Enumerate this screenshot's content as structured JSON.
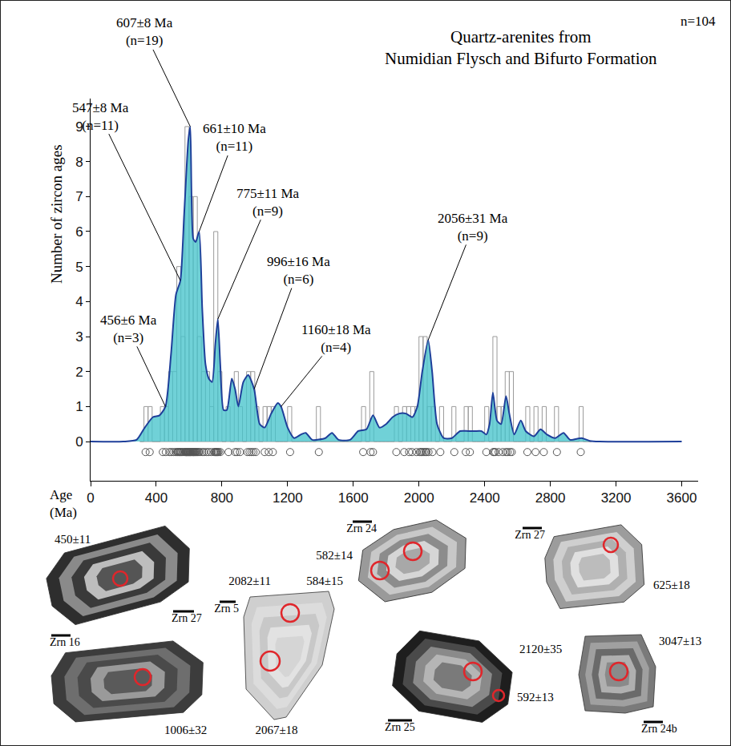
{
  "chart_data": {
    "type": "histogram",
    "title": [
      "Quartz-arenites from",
      "Numidian Flysch and Bifurto Formation"
    ],
    "note": "n=104",
    "ylabel": "Number of zircon ages",
    "xlabel": [
      "Age",
      "(Ma)"
    ],
    "xlim": [
      0,
      3700
    ],
    "xticks": [
      0,
      400,
      800,
      1200,
      1600,
      2000,
      2400,
      2800,
      3200,
      3600
    ],
    "ylim": [
      -1.12,
      9.8
    ],
    "yticks": [
      0,
      1,
      2,
      3,
      4,
      5,
      6,
      7,
      8,
      9
    ],
    "grid": false,
    "series": [
      {
        "type": "line",
        "color": "#1e3f9a",
        "x": [
          0,
          200,
          280,
          330,
          380,
          420,
          456,
          490,
          520,
          547,
          570,
          595,
          607,
          625,
          640,
          661,
          680,
          700,
          720,
          740,
          760,
          775,
          790,
          810,
          830,
          860,
          880,
          900,
          930,
          960,
          996,
          1030,
          1060,
          1100,
          1140,
          1160,
          1200,
          1240,
          1280,
          1310,
          1350,
          1430,
          1470,
          1510,
          1580,
          1630,
          1680,
          1720,
          1760,
          1800,
          1840,
          1880,
          1920,
          1960,
          1990,
          2020,
          2056,
          2080,
          2110,
          2150,
          2200,
          2250,
          2300,
          2340,
          2380,
          2410,
          2430,
          2450,
          2475,
          2500,
          2530,
          2550,
          2580,
          2620,
          2650,
          2700,
          2740,
          2780,
          2830,
          2880,
          2920,
          2990,
          3040,
          3100,
          3600
        ],
        "values": [
          0,
          0,
          0.05,
          0.4,
          0.7,
          0.75,
          1.0,
          2.5,
          4.2,
          4.6,
          6.5,
          8.6,
          9.0,
          5.8,
          5.7,
          6.0,
          3.8,
          2.2,
          1.8,
          1.7,
          2.8,
          3.5,
          2.2,
          0.9,
          0.9,
          1.8,
          1.5,
          1.0,
          1.7,
          1.9,
          1.5,
          0.5,
          0.4,
          0.8,
          1.1,
          1.0,
          0.4,
          0.1,
          0.2,
          0.25,
          0.05,
          0.1,
          0.25,
          0.05,
          0.05,
          0.3,
          0.35,
          0.75,
          0.4,
          0.5,
          0.7,
          0.8,
          0.8,
          0.7,
          1.0,
          2.0,
          2.9,
          2.0,
          0.5,
          0.1,
          0.1,
          0.3,
          0.3,
          0.3,
          0.3,
          0.2,
          0.5,
          1.4,
          0.6,
          0.5,
          1.3,
          0.8,
          0.2,
          0.6,
          0.3,
          0.15,
          0.35,
          0.2,
          0.1,
          0.25,
          0.05,
          0.1,
          0.02,
          0,
          0
        ]
      },
      {
        "type": "histogram",
        "color": "#9a9a9a",
        "bins": [
          300,
          325,
          350,
          375,
          400,
          425,
          450,
          475,
          500,
          525,
          550,
          575,
          600,
          625,
          650,
          675,
          700,
          725,
          750,
          775,
          800,
          825,
          850,
          875,
          900,
          925,
          950,
          975,
          1000,
          1025,
          1050,
          1075,
          1100,
          1125,
          1150,
          1175,
          1200,
          1225,
          1250,
          1275,
          1300,
          1325,
          1350,
          1375,
          1400,
          1425,
          1450,
          1475,
          1500,
          1525,
          1550,
          1575,
          1600,
          1625,
          1650,
          1675,
          1700,
          1725,
          1750,
          1775,
          1800,
          1825,
          1850,
          1875,
          1900,
          1925,
          1950,
          1975,
          2000,
          2025,
          2050,
          2075,
          2100,
          2125,
          2150,
          2175,
          2200,
          2225,
          2250,
          2275,
          2300,
          2325,
          2350,
          2375,
          2400,
          2425,
          2450,
          2475,
          2500,
          2525,
          2550,
          2575,
          2600,
          2625,
          2650,
          2675,
          2700,
          2725,
          2750,
          2775,
          2800,
          2825,
          2850,
          2875,
          2900,
          2925,
          2950,
          2975,
          3000,
          3025,
          3050
        ],
        "values": [
          0,
          1,
          1,
          0,
          0,
          1,
          1,
          2,
          2,
          5,
          3,
          9,
          7,
          7,
          3,
          2,
          2,
          1,
          6,
          2,
          0,
          1,
          0,
          2,
          1,
          0,
          2,
          2,
          1,
          0,
          1,
          1,
          1,
          0,
          0,
          0,
          1,
          0,
          0,
          0,
          0,
          0,
          0,
          1,
          0,
          0,
          0,
          0,
          0,
          0,
          0,
          0,
          0,
          0,
          1,
          0,
          2,
          0,
          0,
          0,
          0,
          0,
          1,
          0,
          1,
          1,
          1,
          1,
          3,
          3,
          1,
          1,
          0,
          1,
          0,
          0,
          1,
          0,
          0,
          1,
          1,
          0,
          0,
          0,
          1,
          0,
          3,
          1,
          1,
          2,
          2,
          0,
          0,
          0,
          1,
          0,
          1,
          0,
          1,
          0,
          0,
          1,
          0,
          0,
          0,
          0,
          0,
          1,
          0,
          0
        ]
      },
      {
        "type": "scatter",
        "marker": "open circle",
        "color": "#555555",
        "x": [
          335,
          360,
          440,
          458,
          480,
          492,
          505,
          518,
          527,
          532,
          538,
          544,
          548,
          553,
          560,
          568,
          576,
          579,
          582,
          584,
          587,
          590,
          592,
          596,
          598,
          602,
          605,
          607,
          610,
          614,
          618,
          622,
          625,
          628,
          630,
          634,
          638,
          642,
          646,
          652,
          658,
          665,
          680,
          690,
          705,
          718,
          735,
          752,
          758,
          762,
          766,
          770,
          774,
          780,
          790,
          840,
          880,
          892,
          910,
          955,
          968,
          980,
          992,
          1006,
          1060,
          1085,
          1110,
          1215,
          1390,
          1660,
          1705,
          1720,
          1862,
          1910,
          1940,
          1958,
          1985,
          2005,
          2012,
          2020,
          2030,
          2040,
          2046,
          2058,
          2082,
          2130,
          2215,
          2285,
          2310,
          2410,
          2452,
          2458,
          2465,
          2485,
          2510,
          2530,
          2540,
          2555,
          2565,
          2660,
          2710,
          2760,
          2840,
          2985
        ]
      }
    ],
    "annotations": [
      {
        "text": [
          "456±6 Ma",
          "(n=3)"
        ],
        "x": 456,
        "y": 1.0
      },
      {
        "text": [
          "547±8 Ma",
          "(n=11)"
        ],
        "x": 547,
        "y": 4.6
      },
      {
        "text": [
          "607±8 Ma",
          "(n=19)"
        ],
        "x": 607,
        "y": 9.0
      },
      {
        "text": [
          "661±10 Ma",
          "(n=11)"
        ],
        "x": 661,
        "y": 6.0
      },
      {
        "text": [
          "775±11 Ma",
          "(n=9)"
        ],
        "x": 775,
        "y": 3.5
      },
      {
        "text": [
          "996±16 Ma",
          "(n=6)"
        ],
        "x": 996,
        "y": 1.5
      },
      {
        "text": [
          "1160±18 Ma",
          "(n=4)"
        ],
        "x": 1160,
        "y": 1.0
      },
      {
        "text": [
          "2056±31 Ma",
          "(n=9)"
        ],
        "x": 2056,
        "y": 2.9
      }
    ]
  },
  "zircon_grains": [
    {
      "label": "Zrn 27",
      "ages": [
        "450±11"
      ]
    },
    {
      "label": "Zrn 16",
      "ages": [
        "1006±32"
      ]
    },
    {
      "label": "Zrn 5",
      "ages": [
        "2082±11",
        "2067±18"
      ]
    },
    {
      "label": "Zrn 24",
      "ages": [
        "582±14",
        "584±15"
      ]
    },
    {
      "label": "Zrn 25",
      "ages": [
        "2120±35",
        "592±13"
      ]
    },
    {
      "label": "Zrn 27",
      "ages": [
        "625±18"
      ]
    },
    {
      "label": "Zrn 24b",
      "ages": [
        "3047±13"
      ]
    }
  ]
}
